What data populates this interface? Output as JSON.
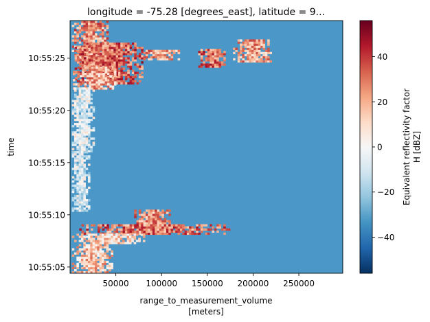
{
  "chart_data": {
    "type": "heatmap",
    "title": "longitude = -75.28 [degrees_east], latitude = 9...",
    "xlabel": "range_to_measurement_volume",
    "xlabel_units": "[meters]",
    "ylabel": "time",
    "xlim": [
      0,
      298000
    ],
    "ylim": [
      "10:55:04.4",
      "10:55:28.6"
    ],
    "x_ticks": [
      {
        "value": 50000,
        "label": "50000"
      },
      {
        "value": 100000,
        "label": "100000"
      },
      {
        "value": 150000,
        "label": "150000"
      },
      {
        "value": 200000,
        "label": "200000"
      },
      {
        "value": 250000,
        "label": "250000"
      }
    ],
    "y_ticks": [
      {
        "value": "10:55:05",
        "label": "10:55:05"
      },
      {
        "value": "10:55:10",
        "label": "10:55:10"
      },
      {
        "value": "10:55:15",
        "label": "10:55:15"
      },
      {
        "value": "10:55:20",
        "label": "10:55:20"
      },
      {
        "value": "10:55:25",
        "label": "10:55:25"
      }
    ],
    "colorbar": {
      "label_line1": "Equivalent reflectivity factor",
      "label_line2": "H [dBZ]",
      "colormap": "RdBu_r",
      "vmin": -56,
      "vmax": 56,
      "ticks": [
        {
          "value": 40,
          "label": "40"
        },
        {
          "value": 20,
          "label": "20"
        },
        {
          "value": 0,
          "label": "0"
        },
        {
          "value": -20,
          "label": "−20"
        },
        {
          "value": -40,
          "label": "−40"
        }
      ]
    },
    "background_value": -30,
    "echo_regions": [
      {
        "t0": 24.0,
        "t1": 28.6,
        "x0": 2000,
        "x1": 40000,
        "mean": 25
      },
      {
        "t0": 22.5,
        "t1": 26.3,
        "x0": 5000,
        "x1": 80000,
        "mean": 32
      },
      {
        "t0": 24.8,
        "t1": 25.6,
        "x0": 80000,
        "x1": 120000,
        "mean": 22
      },
      {
        "t0": 24.1,
        "t1": 25.8,
        "x0": 140000,
        "x1": 170000,
        "mean": 30
      },
      {
        "t0": 24.6,
        "t1": 26.6,
        "x0": 178000,
        "x1": 220000,
        "mean": 22
      },
      {
        "t0": 22.0,
        "t1": 24.0,
        "x0": 3000,
        "x1": 50000,
        "mean": 20
      },
      {
        "t0": 16.0,
        "t1": 22.0,
        "x0": 2000,
        "x1": 25000,
        "mean": -5
      },
      {
        "t0": 10.3,
        "t1": 16.0,
        "x0": 2000,
        "x1": 20000,
        "mean": -8
      },
      {
        "t0": 8.9,
        "t1": 10.4,
        "x0": 70000,
        "x1": 110000,
        "mean": 25
      },
      {
        "t0": 8.1,
        "t1": 9.0,
        "x0": 10000,
        "x1": 175000,
        "mean": 30
      },
      {
        "t0": 7.2,
        "t1": 8.2,
        "x0": 2000,
        "x1": 80000,
        "mean": 10
      },
      {
        "t0": 4.4,
        "t1": 7.2,
        "x0": 2000,
        "x1": 45000,
        "mean": 15
      }
    ]
  }
}
